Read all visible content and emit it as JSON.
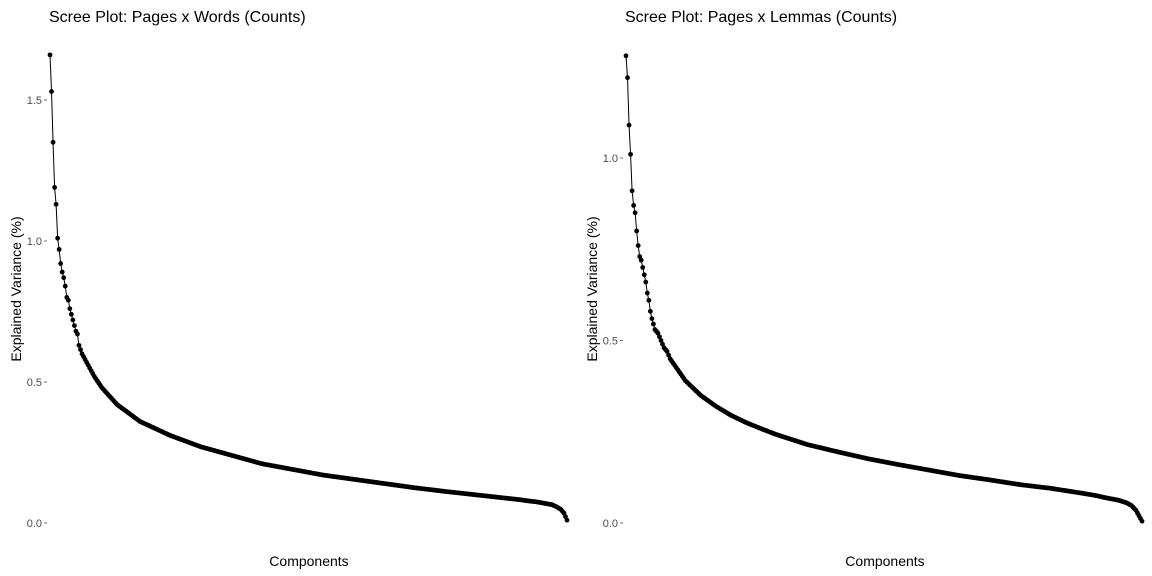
{
  "chart_data": [
    {
      "type": "line",
      "title": "Scree Plot: Pages x Words (Counts)",
      "xlabel": "Components",
      "ylabel": "Explained Variance (%)",
      "yticks": [
        0.0,
        0.5,
        1.0,
        1.5
      ],
      "ytick_labels": [
        "0.0",
        "0.5",
        "1.0",
        "1.5"
      ],
      "ylim": [
        0,
        1.68
      ],
      "xlim": [
        1,
        340
      ],
      "grid": false,
      "legend": "none",
      "color": "#000000",
      "series": [
        {
          "x": [
            1,
            2,
            3,
            4,
            5,
            6,
            7,
            8,
            9,
            10,
            11,
            12,
            13,
            14,
            15,
            16,
            17,
            18,
            19,
            20,
            22,
            24,
            26,
            28,
            30,
            35,
            40,
            45,
            50,
            55,
            60,
            70,
            80,
            90,
            100,
            120,
            140,
            160,
            180,
            200,
            220,
            240,
            260,
            280,
            300,
            310,
            315,
            320,
            325,
            330,
            333,
            336,
            338,
            340
          ],
          "y": [
            1.66,
            1.53,
            1.35,
            1.19,
            1.13,
            1.01,
            0.97,
            0.92,
            0.89,
            0.87,
            0.84,
            0.8,
            0.79,
            0.76,
            0.74,
            0.72,
            0.7,
            0.68,
            0.67,
            0.63,
            0.6,
            0.58,
            0.56,
            0.54,
            0.52,
            0.48,
            0.45,
            0.42,
            0.4,
            0.38,
            0.36,
            0.335,
            0.31,
            0.29,
            0.27,
            0.24,
            0.21,
            0.19,
            0.17,
            0.155,
            0.14,
            0.125,
            0.112,
            0.1,
            0.088,
            0.082,
            0.078,
            0.075,
            0.07,
            0.065,
            0.058,
            0.048,
            0.035,
            0.01
          ]
        }
      ]
    },
    {
      "type": "line",
      "title": "Scree Plot: Pages x Lemmas (Counts)",
      "xlabel": "Components",
      "ylabel": "Explained Variance (%)",
      "yticks": [
        0.0,
        0.5,
        1.0
      ],
      "ytick_labels": [
        "0.0",
        "0.5",
        "1.0"
      ],
      "ylim": [
        0,
        1.28
      ],
      "xlim": [
        1,
        340
      ],
      "grid": false,
      "legend": "none",
      "color": "#000000",
      "series": [
        {
          "x": [
            1,
            2,
            3,
            4,
            5,
            6,
            7,
            8,
            9,
            10,
            11,
            12,
            13,
            14,
            15,
            16,
            17,
            18,
            20,
            22,
            24,
            26,
            28,
            30,
            35,
            40,
            45,
            50,
            55,
            60,
            70,
            80,
            90,
            100,
            120,
            140,
            160,
            180,
            200,
            220,
            240,
            260,
            280,
            300,
            310,
            315,
            320,
            325,
            330,
            333,
            336,
            338,
            340
          ],
          "y": [
            1.28,
            1.22,
            1.09,
            1.01,
            0.91,
            0.87,
            0.85,
            0.8,
            0.76,
            0.73,
            0.72,
            0.7,
            0.68,
            0.66,
            0.63,
            0.61,
            0.58,
            0.56,
            0.53,
            0.52,
            0.5,
            0.48,
            0.47,
            0.45,
            0.42,
            0.39,
            0.37,
            0.35,
            0.335,
            0.32,
            0.295,
            0.275,
            0.258,
            0.242,
            0.215,
            0.195,
            0.176,
            0.16,
            0.145,
            0.13,
            0.118,
            0.105,
            0.095,
            0.082,
            0.075,
            0.07,
            0.066,
            0.062,
            0.055,
            0.048,
            0.035,
            0.02,
            0.005
          ]
        }
      ]
    }
  ]
}
